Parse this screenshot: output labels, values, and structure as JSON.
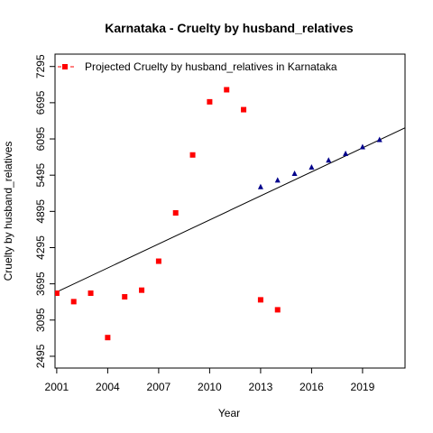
{
  "chart_data": {
    "type": "scatter",
    "title": "Karnataka  -  Cruelty by husband_relatives",
    "xlabel": "Year",
    "ylabel": "Cruelty by husband_relatives",
    "xlim": [
      2000.9,
      2021.5
    ],
    "ylim": [
      2300,
      7500
    ],
    "x_ticks": [
      2001,
      2004,
      2007,
      2010,
      2013,
      2016,
      2019
    ],
    "y_ticks": [
      2495,
      3095,
      3695,
      4295,
      4895,
      5495,
      6095,
      6695,
      7295
    ],
    "legend": {
      "position": "top-left",
      "entries": [
        {
          "label": "Projected  Cruelty by husband_relatives  in  Karnataka",
          "color": "#ff0000"
        }
      ]
    },
    "series": [
      {
        "name": "Projected  Cruelty by husband_relatives  in  Karnataka",
        "marker": "square",
        "color": "#ff0000",
        "x": [
          2001,
          2002,
          2003,
          2004,
          2005,
          2006,
          2007,
          2008,
          2009,
          2010,
          2011,
          2012,
          2013,
          2014
        ],
        "y": [
          3540,
          3400,
          3540,
          2805,
          3480,
          3590,
          4070,
          4870,
          5830,
          6710,
          6910,
          6580,
          3430,
          3265
        ]
      },
      {
        "marker": "triangle",
        "color": "#00008b",
        "x": [
          2013,
          2014,
          2015,
          2016,
          2017,
          2018,
          2019,
          2020
        ],
        "y": [
          5300,
          5410,
          5520,
          5625,
          5740,
          5850,
          5960,
          6080
        ]
      }
    ],
    "trend_line": {
      "x": [
        2001,
        2020
      ],
      "y": [
        3560,
        6080
      ],
      "color": "#000000"
    },
    "grid": false
  }
}
